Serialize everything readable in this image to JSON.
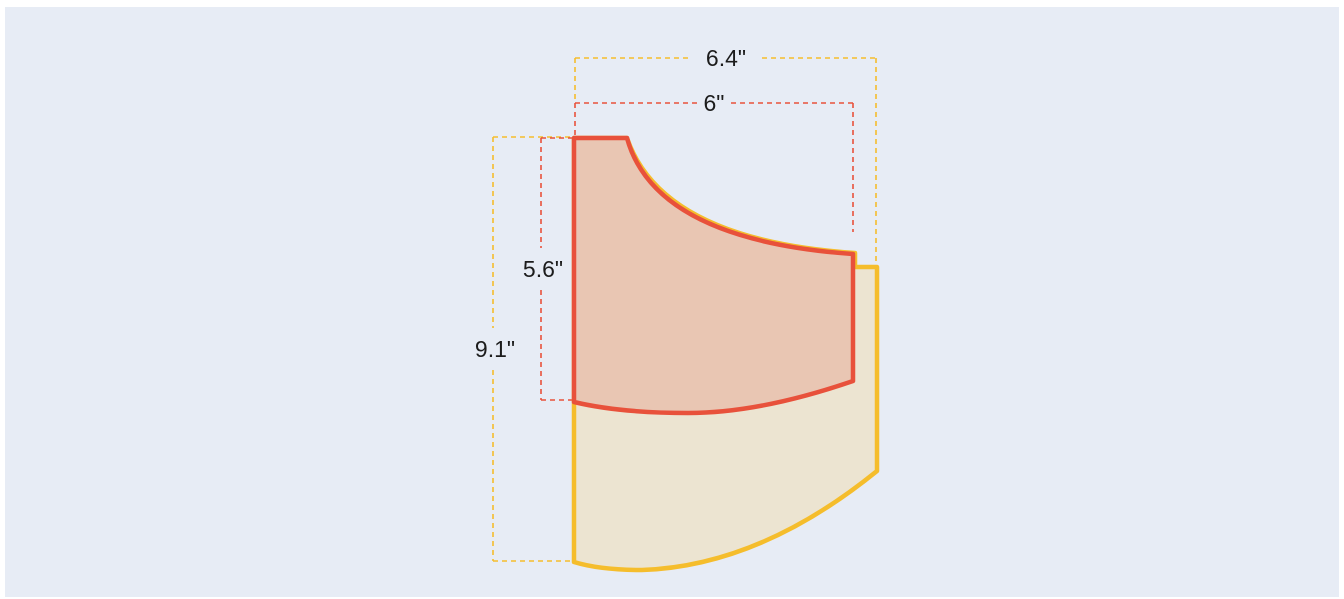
{
  "diagram": {
    "colors": {
      "background": "#e7ecf5",
      "large_outline": "#f5bd2c",
      "large_fill": "#ece4d1",
      "small_outline": "#e8513b",
      "small_fill": "#e9c6b3"
    },
    "dimensions": {
      "large_width": "6.4\"",
      "small_width": "6\"",
      "small_height": "5.6\"",
      "large_height": "9.1\""
    }
  }
}
